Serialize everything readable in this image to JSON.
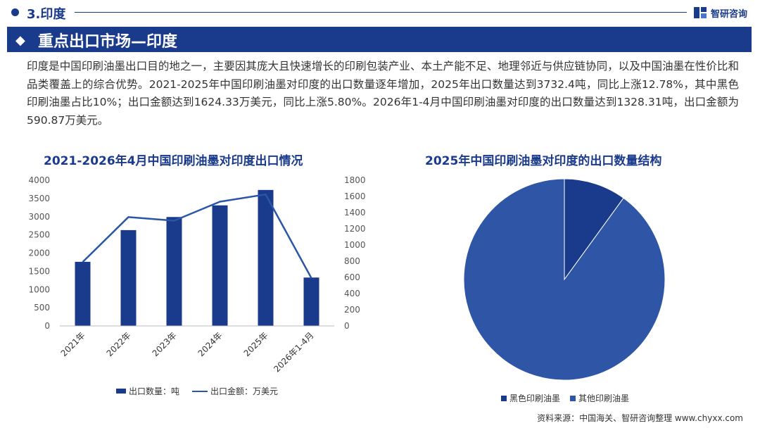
{
  "header": {
    "section": "3.印度",
    "brand": "智研咨询"
  },
  "banner": {
    "title": "重点出口市场—印度"
  },
  "paragraph": "印度是中国印刷油墨出口目的地之一，主要因其庞大且快速增长的印刷包装产业、本土产能不足、地理邻近与供应链协同，以及中国油墨在性价比和品类覆盖上的综合优势。2021-2025年中国印刷油墨对印度的出口数量逐年增加，2025年出口数量达到3732.4吨，同比上涨12.78%，其中黑色印刷油墨占比10%；出口金额达到1624.33万美元，同比上涨5.80%。2026年1-4月中国印刷油墨对印度的出口数量达到1328.31吨，出口金额为590.87万美元。",
  "colors": {
    "primary": "#1a3a8c",
    "line": "#2a56a8",
    "pie_other": "#2f56a6"
  },
  "chart_data": [
    {
      "type": "bar",
      "title": "2021-2026年4月中国印刷油墨对印度出口情况",
      "categories": [
        "2021年",
        "2022年",
        "2023年",
        "2024年",
        "2025年",
        "2026年1-4月"
      ],
      "series": [
        {
          "name": "出口数量：吨",
          "type": "bar",
          "axis": "left",
          "values": [
            1760,
            2630,
            2990,
            3310,
            3732.4,
            1328.31
          ]
        },
        {
          "name": "出口金额：万美元",
          "type": "line",
          "axis": "right",
          "values": [
            790,
            1345,
            1300,
            1535,
            1624.33,
            590.87
          ]
        }
      ],
      "y_left": {
        "min": 0,
        "max": 4000,
        "ticks": [
          0,
          500,
          1000,
          1500,
          2000,
          2500,
          3000,
          3500,
          4000
        ]
      },
      "y_right": {
        "min": 0,
        "max": 1800,
        "ticks": [
          0,
          200,
          400,
          600,
          800,
          1000,
          1200,
          1400,
          1600,
          1800
        ]
      },
      "grid": false,
      "legend_position": "bottom"
    },
    {
      "type": "pie",
      "title": "2025年中国印刷油墨对印度的出口数量结构",
      "labels": [
        "黑色印刷油墨",
        "其他印刷油墨"
      ],
      "values": [
        10,
        90
      ],
      "colors": [
        "#1a3a8c",
        "#2f56a6"
      ],
      "legend_position": "bottom"
    }
  ],
  "source": "资料来源：中国海关、智研咨询整理 www.chyxx.com"
}
